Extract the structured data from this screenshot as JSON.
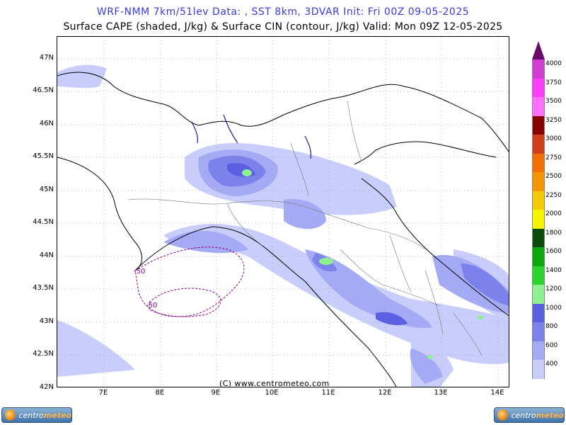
{
  "header": {
    "line1": "WRF-NMM 7km/51lev  Data: , SST 8km, 3DVAR  Init: Fri 00Z 09-05-2025",
    "line2": "Surface CAPE (shaded, J/kg) & Surface CIN (contour, J/kg)  Valid: Mon 09Z 12-05-2025"
  },
  "axes": {
    "lat_labels": [
      "47N",
      "46.5N",
      "46N",
      "45.5N",
      "45N",
      "44.5N",
      "44N",
      "43.5N",
      "43N",
      "42.5N",
      "42N"
    ],
    "lon_labels": [
      "7E",
      "8E",
      "9E",
      "10E",
      "11E",
      "12E",
      "13E",
      "14E"
    ]
  },
  "contours": {
    "cin_labels": [
      "-50",
      "-50"
    ],
    "color": "#8b008b"
  },
  "footer": {
    "copyright": "(C) www.centrometeo.com"
  },
  "logos": {
    "left_text_a": "centro",
    "left_text_b": "meteo",
    "right_text_a": "centro",
    "right_text_b": "meteo"
  },
  "legend": {
    "values": [
      "400",
      "600",
      "800",
      "1000",
      "1200",
      "1400",
      "1600",
      "1800",
      "2000",
      "2250",
      "2500",
      "2750",
      "3000",
      "3250",
      "3500",
      "3750",
      "4000"
    ],
    "colors": [
      "#c8cdfb",
      "#a4abf4",
      "#7c82ec",
      "#5a5fe4",
      "#8ef08e",
      "#2bd42b",
      "#0aa80a",
      "#0a4a0a",
      "#f5f500",
      "#f5c800",
      "#f59600",
      "#f56e00",
      "#d43c1e",
      "#8a0000",
      "#ff6eff",
      "#ff3cff",
      "#d23cd2"
    ],
    "top_color": "#6a0a6a"
  }
}
